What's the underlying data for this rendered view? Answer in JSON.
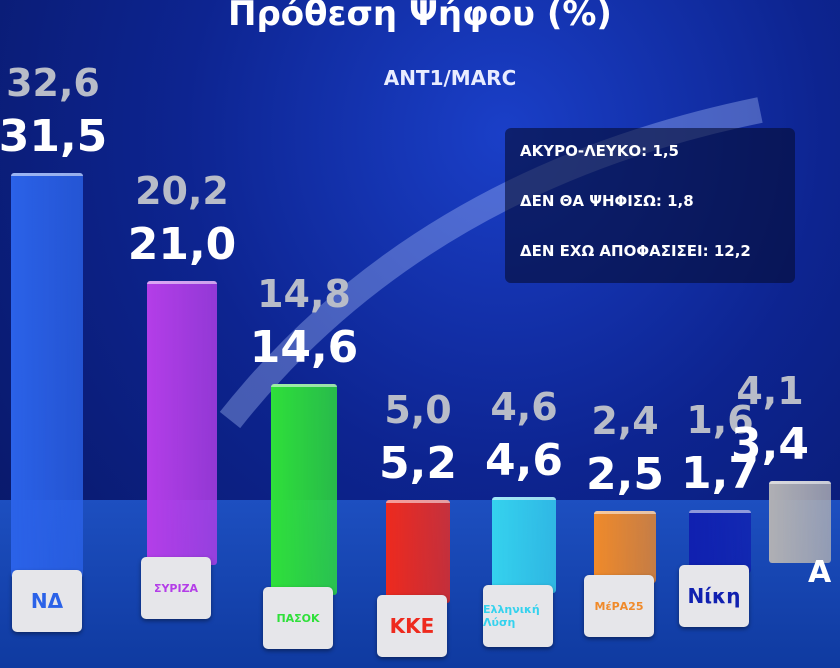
{
  "chart_data": {
    "type": "bar",
    "title": "Πρόθεση Ψήφου (%)",
    "subtitle": "ANT1/MARC",
    "categories": [
      "ΝΔ",
      "ΣΥΡΙΖΑ",
      "ΠΑΣΟΚ",
      "ΚΚΕ",
      "Ελληνική Λύση",
      "ΜέΡΑ25",
      "Νίκη",
      "Α"
    ],
    "series": [
      {
        "values": [
          32.6,
          20.2,
          14.8,
          5.0,
          4.6,
          2.4,
          1.6,
          4.1
        ],
        "labels": [
          "32,6",
          "20,2",
          "14,8",
          "5,0",
          "4,6",
          "2,4",
          "1,6",
          "4,1"
        ],
        "color": "#b8bcc8"
      },
      {
        "values": [
          31.5,
          21.0,
          14.6,
          5.2,
          4.6,
          2.5,
          1.7,
          3.4
        ],
        "labels": [
          "31,5",
          "21,0",
          "14,6",
          "5,2",
          "4,6",
          "2,5",
          "1,7",
          "3,4"
        ],
        "color": "#ffffff"
      }
    ],
    "bar_colors": [
      "#2b62e8",
      "#b43ee8",
      "#2fe03a",
      "#ee2a1e",
      "#35d2ee",
      "#f08a2a",
      "#1020b0",
      "#b0b0b4"
    ],
    "logos": [
      "ΝΔ",
      "ΣΥΡΙΖΑ",
      "ΠΑΣΟΚ",
      "ΚΚΕ",
      "Ελληνική Λύση",
      "ΜέΡΑ25",
      "Νίκη",
      "Α"
    ],
    "annotations": [
      "ΑΚΥΡΟ-ΛΕΥΚΟ: 1,5",
      "ΔΕΝ ΘΑ ΨΗΦΙΣΩ: 1,8",
      "ΔΕΝ ΕΧΩ ΑΠΟΦΑΣΙΣΕΙ: 12,2"
    ]
  }
}
